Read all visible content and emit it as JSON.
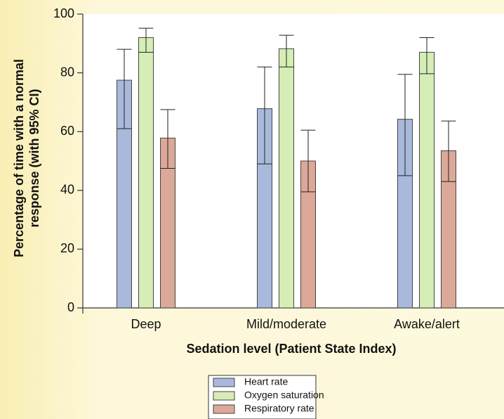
{
  "chart_data": {
    "type": "bar",
    "y_label": [
      "Percentage of time with a normal",
      "response (with 95% CI)"
    ],
    "x_label": "Sedation level (Patient State Index)",
    "categories": [
      "Deep",
      "Mild/moderate",
      "Awake/alert"
    ],
    "series": [
      {
        "name": "Heart rate",
        "color": "#a9b9dc",
        "values": [
          77.5,
          67.8,
          64.2
        ],
        "lower": [
          61,
          49,
          45
        ],
        "upper": [
          88,
          82,
          79.5
        ]
      },
      {
        "name": "Oxygen saturation",
        "color": "#d6edb5",
        "values": [
          92,
          88.2,
          87
        ],
        "lower": [
          87,
          82,
          79.7
        ],
        "upper": [
          95.2,
          92.8,
          92
        ]
      },
      {
        "name": "Respiratory rate",
        "color": "#dca898",
        "values": [
          57.8,
          50,
          53.5
        ],
        "lower": [
          47.5,
          39.5,
          43
        ],
        "upper": [
          67.5,
          60.5,
          63.6
        ]
      }
    ],
    "ylim": [
      0,
      100
    ],
    "yticks": [
      0,
      20,
      40,
      60,
      80,
      100
    ]
  }
}
